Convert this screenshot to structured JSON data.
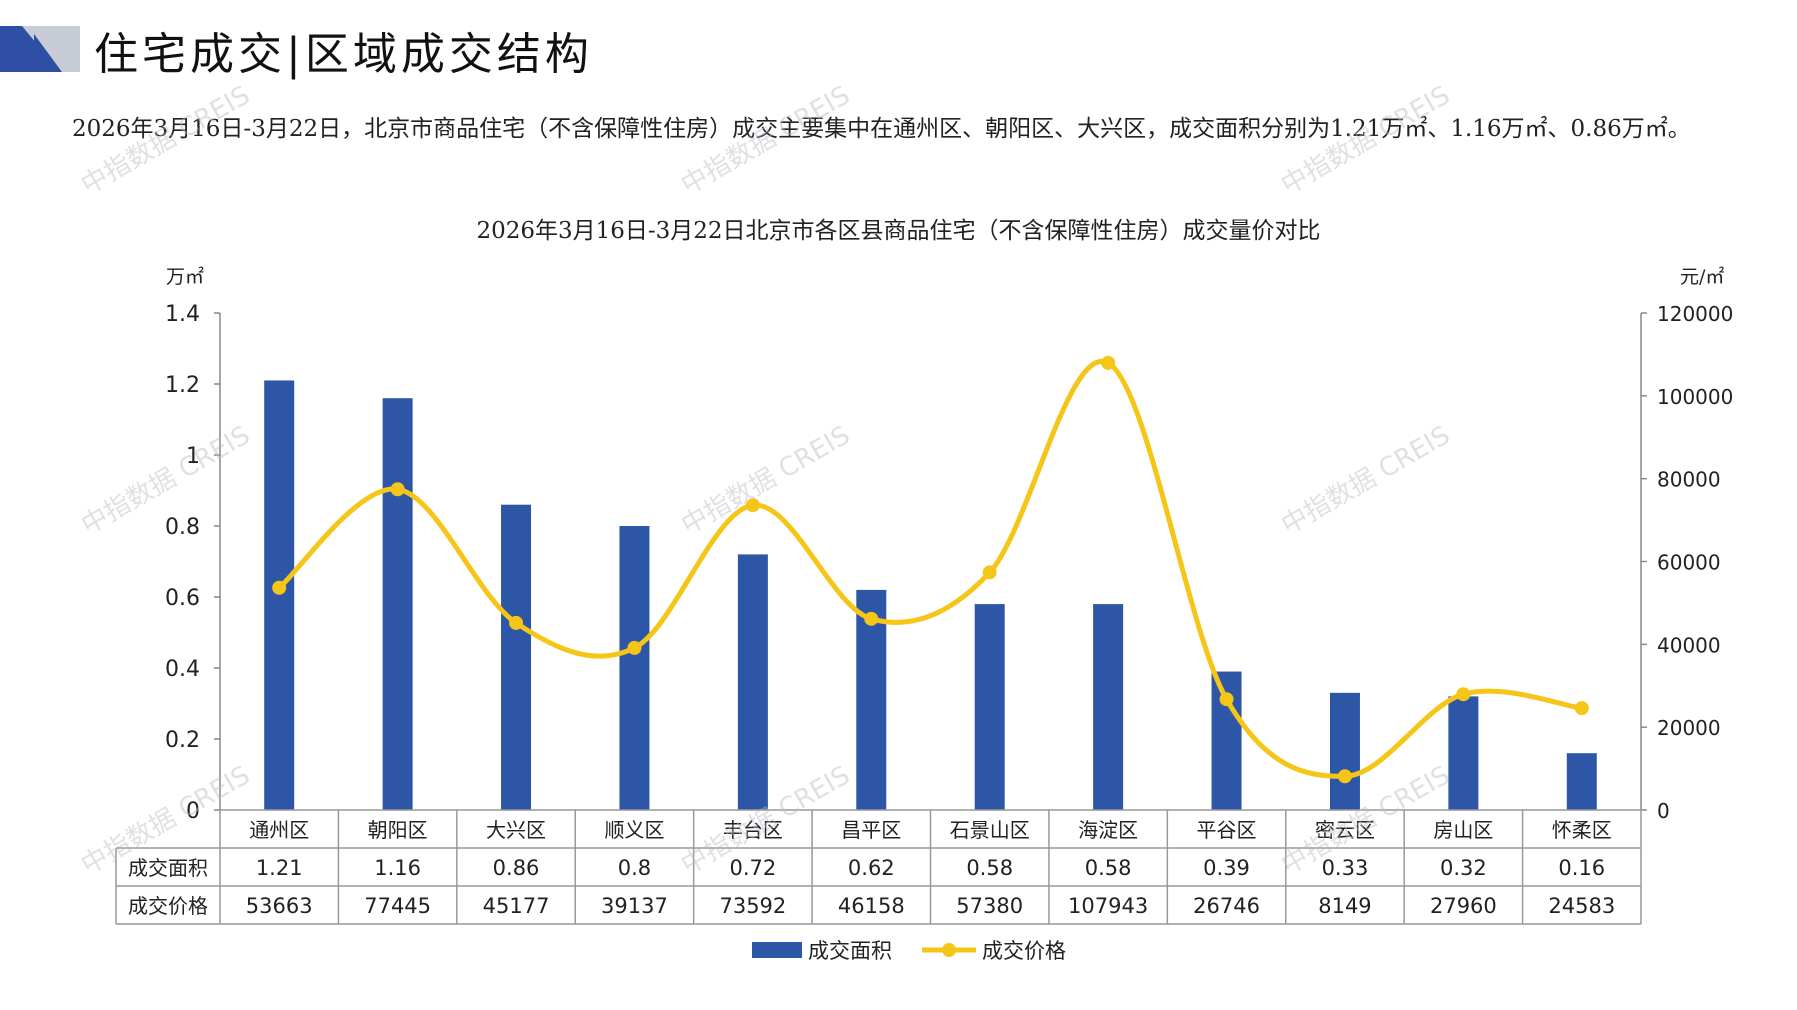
{
  "header": {
    "title": "住宅成交|区域成交结构"
  },
  "summary": "2026年3月16日-3月22日，北京市商品住宅（不含保障性住房）成交主要集中在通州区、朝阳区、大兴区，成交面积分别为1.21万㎡、1.16万㎡、0.86万㎡。",
  "watermark": "中指数据 CREIS",
  "colors": {
    "bar": "#2E56A6",
    "line": "#F5C518",
    "logo_dark": "#2E4FA3",
    "logo_light": "#C8CCD6"
  },
  "chart_data": {
    "type": "bar",
    "title": "2026年3月16日-3月22日北京市各区县商品住宅（不含保障性住房）成交量价对比",
    "categories": [
      "通州区",
      "朝阳区",
      "大兴区",
      "顺义区",
      "丰台区",
      "昌平区",
      "石景山区",
      "海淀区",
      "平谷区",
      "密云区",
      "房山区",
      "怀柔区"
    ],
    "series": [
      {
        "name": "成交面积",
        "type": "bar",
        "axis": "left",
        "color": "#2E56A6",
        "values": [
          1.21,
          1.16,
          0.86,
          0.8,
          0.72,
          0.62,
          0.58,
          0.58,
          0.39,
          0.33,
          0.32,
          0.16
        ]
      },
      {
        "name": "成交价格",
        "type": "line",
        "axis": "right",
        "color": "#F5C518",
        "values": [
          53663,
          77445,
          45177,
          39137,
          73592,
          46158,
          57380,
          107943,
          26746,
          8149,
          27960,
          24583
        ]
      }
    ],
    "y_left": {
      "unit": "万㎡",
      "min": 0,
      "max": 1.4,
      "ticks": [
        "0",
        "0.2",
        "0.4",
        "0.6",
        "0.8",
        "1",
        "1.2",
        "1.4"
      ]
    },
    "y_right": {
      "unit": "元/㎡",
      "min": 0,
      "max": 120000,
      "ticks": [
        "0",
        "20000",
        "40000",
        "60000",
        "80000",
        "100000",
        "120000"
      ]
    },
    "table": {
      "rows": [
        {
          "label": "成交面积",
          "cells": [
            "1.21",
            "1.16",
            "0.86",
            "0.8",
            "0.72",
            "0.62",
            "0.58",
            "0.58",
            "0.39",
            "0.33",
            "0.32",
            "0.16"
          ]
        },
        {
          "label": "成交价格",
          "cells": [
            "53663",
            "77445",
            "45177",
            "39137",
            "73592",
            "46158",
            "57380",
            "107943",
            "26746",
            "8149",
            "27960",
            "24583"
          ]
        }
      ]
    },
    "legend": {
      "position": "bottom",
      "items": [
        "成交面积",
        "成交价格"
      ]
    },
    "grid": false
  }
}
